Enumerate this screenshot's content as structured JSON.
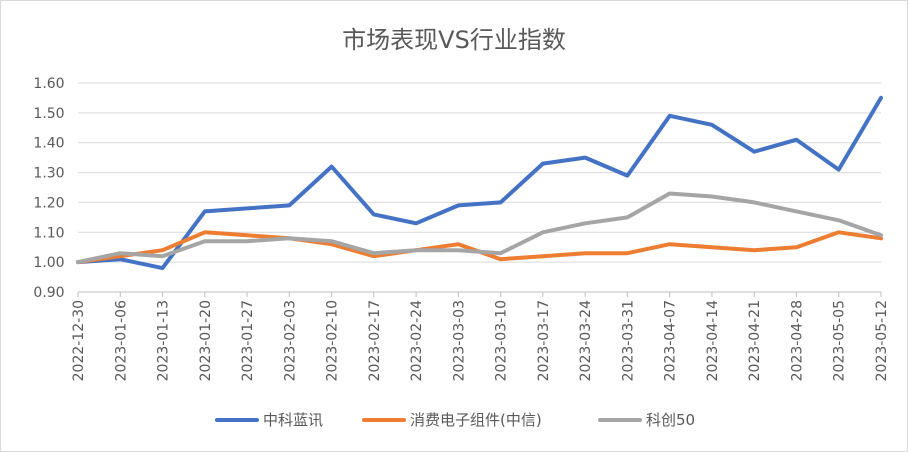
{
  "chart_data": {
    "type": "line",
    "title": "市场表现VS行业指数",
    "xlabel": "",
    "ylabel": "",
    "ylim": [
      0.9,
      1.6
    ],
    "yticks": [
      "0.90",
      "1.00",
      "1.10",
      "1.20",
      "1.30",
      "1.40",
      "1.50",
      "1.60"
    ],
    "ytick_values": [
      0.9,
      1.0,
      1.1,
      1.2,
      1.3,
      1.4,
      1.5,
      1.6
    ],
    "grid": "horizontal",
    "legend_position": "bottom",
    "categories": [
      "2022-12-30",
      "2023-01-06",
      "2023-01-13",
      "2023-01-20",
      "2023-01-27",
      "2023-02-03",
      "2023-02-10",
      "2023-02-17",
      "2023-02-24",
      "2023-03-03",
      "2023-03-10",
      "2023-03-17",
      "2023-03-24",
      "2023-03-31",
      "2023-04-07",
      "2023-04-14",
      "2023-04-21",
      "2023-04-28",
      "2023-05-05",
      "2023-05-12"
    ],
    "series": [
      {
        "name": "中科蓝讯",
        "color": "#4472C4",
        "values": [
          1.0,
          1.01,
          0.98,
          1.17,
          1.18,
          1.19,
          1.32,
          1.16,
          1.13,
          1.19,
          1.2,
          1.33,
          1.35,
          1.29,
          1.49,
          1.46,
          1.37,
          1.41,
          1.31,
          1.55
        ]
      },
      {
        "name": "消费电子组件(中信)",
        "color": "#ED7D31",
        "values": [
          1.0,
          1.02,
          1.04,
          1.1,
          1.09,
          1.08,
          1.06,
          1.02,
          1.04,
          1.06,
          1.01,
          1.02,
          1.03,
          1.03,
          1.06,
          1.05,
          1.04,
          1.05,
          1.1,
          1.08
        ]
      },
      {
        "name": "科创50",
        "color": "#A5A5A5",
        "values": [
          1.0,
          1.03,
          1.02,
          1.07,
          1.07,
          1.08,
          1.07,
          1.03,
          1.04,
          1.04,
          1.03,
          1.1,
          1.13,
          1.15,
          1.23,
          1.22,
          1.2,
          1.17,
          1.14,
          1.09
        ]
      }
    ]
  }
}
